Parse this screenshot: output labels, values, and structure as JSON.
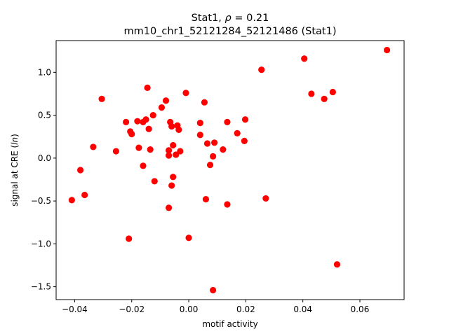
{
  "chart_data": {
    "type": "scatter",
    "title_line1": "Stat1, ρ = 0.21",
    "title_line2": "mm10_chr1_52121284_52121486 (Stat1)",
    "xlabel": "motif activity",
    "ylabel": "signal at CRE (ln)",
    "xlim": [
      -0.0465,
      0.0755
    ],
    "ylim": [
      -1.65,
      1.37
    ],
    "xticks": [
      -0.04,
      -0.02,
      0.0,
      0.02,
      0.04,
      0.06
    ],
    "xtick_labels": [
      "−0.04",
      "−0.02",
      "0.00",
      "0.02",
      "0.04",
      "0.06"
    ],
    "yticks": [
      -1.5,
      -1.0,
      -0.5,
      0.0,
      0.5,
      1.0
    ],
    "ytick_labels": [
      "−1.5",
      "−1.0",
      "−0.5",
      "0.0",
      "0.5",
      "1.0"
    ],
    "grid": false,
    "point_color": "#ff0000",
    "points": [
      [
        -0.041,
        -0.49
      ],
      [
        -0.038,
        -0.14
      ],
      [
        -0.0365,
        -0.43
      ],
      [
        -0.0335,
        0.13
      ],
      [
        -0.0305,
        0.69
      ],
      [
        -0.0255,
        0.08
      ],
      [
        -0.022,
        0.42
      ],
      [
        -0.021,
        -0.94
      ],
      [
        -0.0205,
        0.31
      ],
      [
        -0.02,
        0.28
      ],
      [
        -0.018,
        0.43
      ],
      [
        -0.0175,
        0.12
      ],
      [
        -0.016,
        -0.09
      ],
      [
        -0.016,
        0.42
      ],
      [
        -0.015,
        0.45
      ],
      [
        -0.0145,
        0.82
      ],
      [
        -0.014,
        0.34
      ],
      [
        -0.0135,
        0.1
      ],
      [
        -0.0125,
        0.5
      ],
      [
        -0.012,
        -0.27
      ],
      [
        -0.0095,
        0.59
      ],
      [
        -0.008,
        0.67
      ],
      [
        -0.007,
        0.09
      ],
      [
        -0.007,
        0.03
      ],
      [
        -0.007,
        -0.58
      ],
      [
        -0.0065,
        0.42
      ],
      [
        -0.006,
        0.37
      ],
      [
        -0.0055,
        0.15
      ],
      [
        -0.0055,
        -0.22
      ],
      [
        -0.006,
        -0.32
      ],
      [
        -0.0045,
        0.04
      ],
      [
        -0.004,
        0.38
      ],
      [
        -0.0035,
        0.33
      ],
      [
        -0.003,
        0.08
      ],
      [
        -0.001,
        0.76
      ],
      [
        0.0,
        -0.93
      ],
      [
        0.004,
        0.41
      ],
      [
        0.004,
        0.27
      ],
      [
        0.0055,
        0.65
      ],
      [
        0.006,
        -0.48
      ],
      [
        0.0065,
        0.17
      ],
      [
        0.0075,
        -0.08
      ],
      [
        0.0085,
        0.02
      ],
      [
        0.009,
        0.18
      ],
      [
        0.0085,
        -1.54
      ],
      [
        0.012,
        0.1
      ],
      [
        0.0135,
        0.42
      ],
      [
        0.0135,
        -0.54
      ],
      [
        0.017,
        0.29
      ],
      [
        0.0195,
        0.2
      ],
      [
        0.0198,
        0.45
      ],
      [
        0.0255,
        1.03
      ],
      [
        0.027,
        -0.47
      ],
      [
        0.0405,
        1.16
      ],
      [
        0.043,
        0.75
      ],
      [
        0.0475,
        0.69
      ],
      [
        0.0505,
        0.77
      ],
      [
        0.052,
        -1.24
      ],
      [
        0.0695,
        1.26
      ]
    ]
  }
}
